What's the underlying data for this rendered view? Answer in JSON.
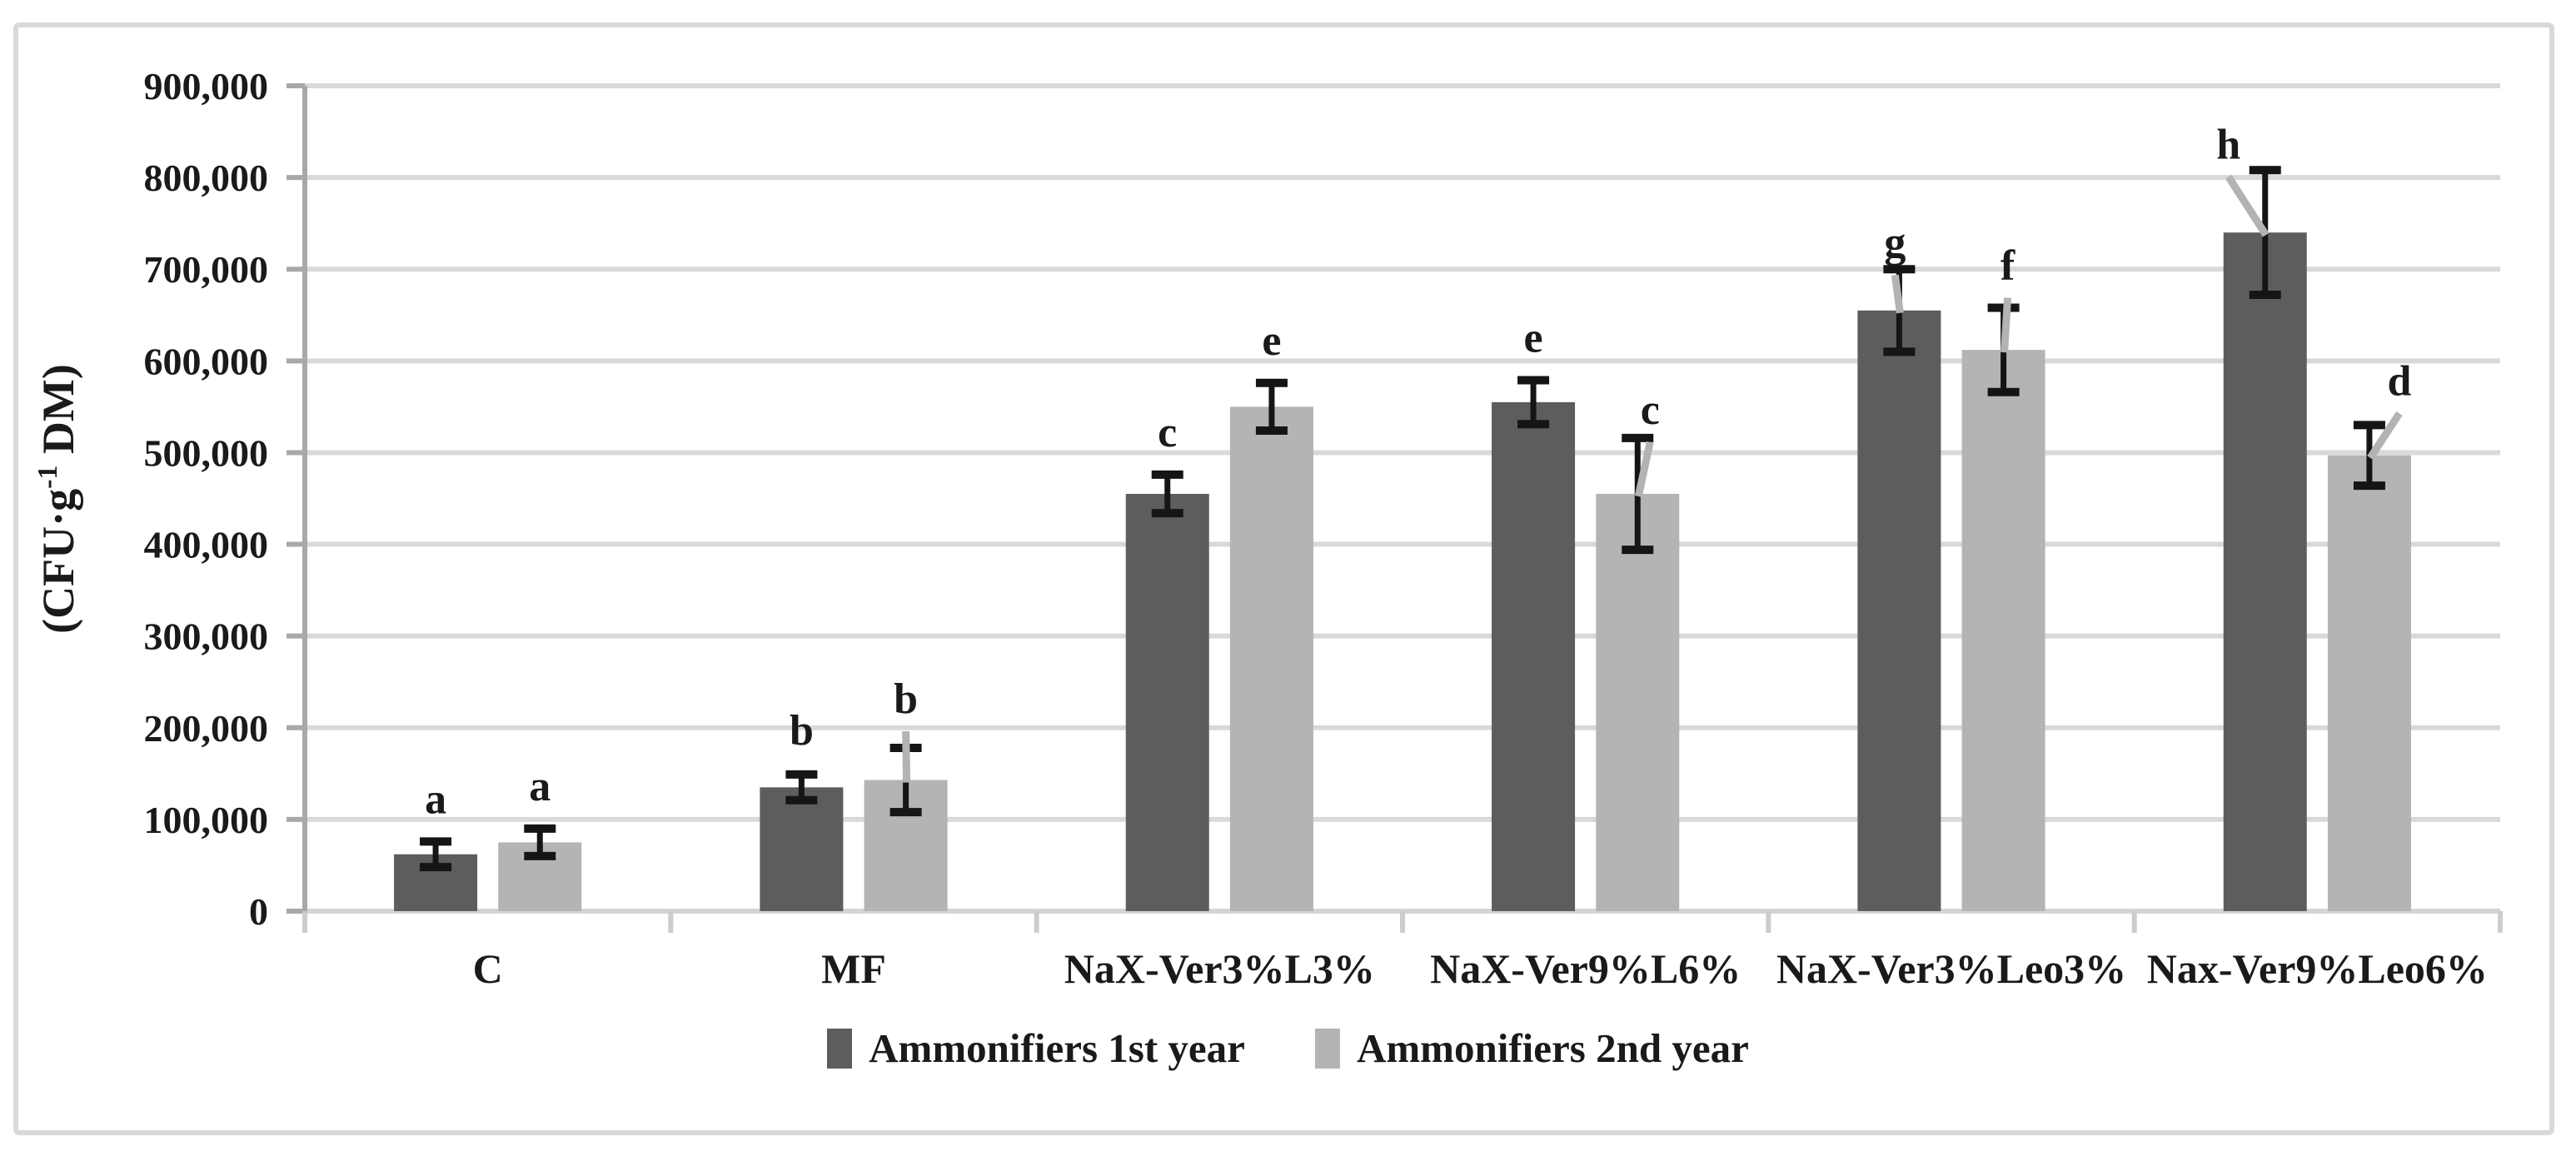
{
  "figure": {
    "background": "#ffffff",
    "border_color": "#d9d9d9"
  },
  "chart_data": {
    "type": "bar",
    "title": "",
    "ylabel": "(CFU·g⁻¹ DM)",
    "ylabel_parts": {
      "pre": "(CFU·g",
      "sup": "-1",
      "post": " DM)"
    },
    "xlabel": "",
    "categories": [
      "C",
      "MF",
      "NaX-Ver3%L3%",
      "NaX-Ver9%L6%",
      "NaX-Ver3%Leo3%",
      "Nax-Ver9%Leo6%"
    ],
    "ylim": [
      0,
      900000
    ],
    "ytick_step": 100000,
    "yticklabels": [
      "0",
      "100,000",
      "200,000",
      "300,000",
      "400,000",
      "500,000",
      "600,000",
      "700,000",
      "800,000",
      "900,000"
    ],
    "grid": true,
    "legend_position": "bottom-center",
    "series": [
      {
        "name": "Ammonifiers 1st year",
        "color": "#5d5d5d",
        "values": [
          62000,
          135000,
          455000,
          555000,
          655000,
          740000
        ],
        "errors": [
          14000,
          14000,
          21000,
          24000,
          45000,
          68000
        ],
        "letters": [
          "a",
          "b",
          "c",
          "e",
          "g",
          "h"
        ],
        "letter_offsets": [
          [
            0,
            -34
          ],
          [
            0,
            -36
          ],
          [
            0,
            -34
          ],
          [
            0,
            -34
          ],
          [
            -5,
            -15
          ],
          [
            -44,
            -14
          ]
        ],
        "leader_lines": [
          false,
          false,
          false,
          false,
          true,
          true
        ]
      },
      {
        "name": "Ammonifiers 2nd year",
        "color": "#b4b4b4",
        "values": [
          75000,
          143000,
          550000,
          455000,
          612000,
          497000
        ],
        "errors": [
          15000,
          35000,
          26000,
          61000,
          46000,
          33000
        ],
        "letters": [
          "a",
          "b",
          "e",
          "c",
          "f",
          "d"
        ],
        "letter_offsets": [
          [
            0,
            -34
          ],
          [
            0,
            -42
          ],
          [
            0,
            -34
          ],
          [
            15,
            -17
          ],
          [
            5,
            -34
          ],
          [
            36,
            -36
          ]
        ],
        "leader_lines": [
          false,
          true,
          false,
          true,
          true,
          true
        ]
      }
    ],
    "colors": {
      "gridline": "#d9d9d9",
      "baseline": "#d4d4d4",
      "axis": "#a8a8a8",
      "x_tick": "#cccccc",
      "error_bar": "#151515",
      "leader_line": "#b3b3b3",
      "text": "#1a1a1a"
    }
  }
}
